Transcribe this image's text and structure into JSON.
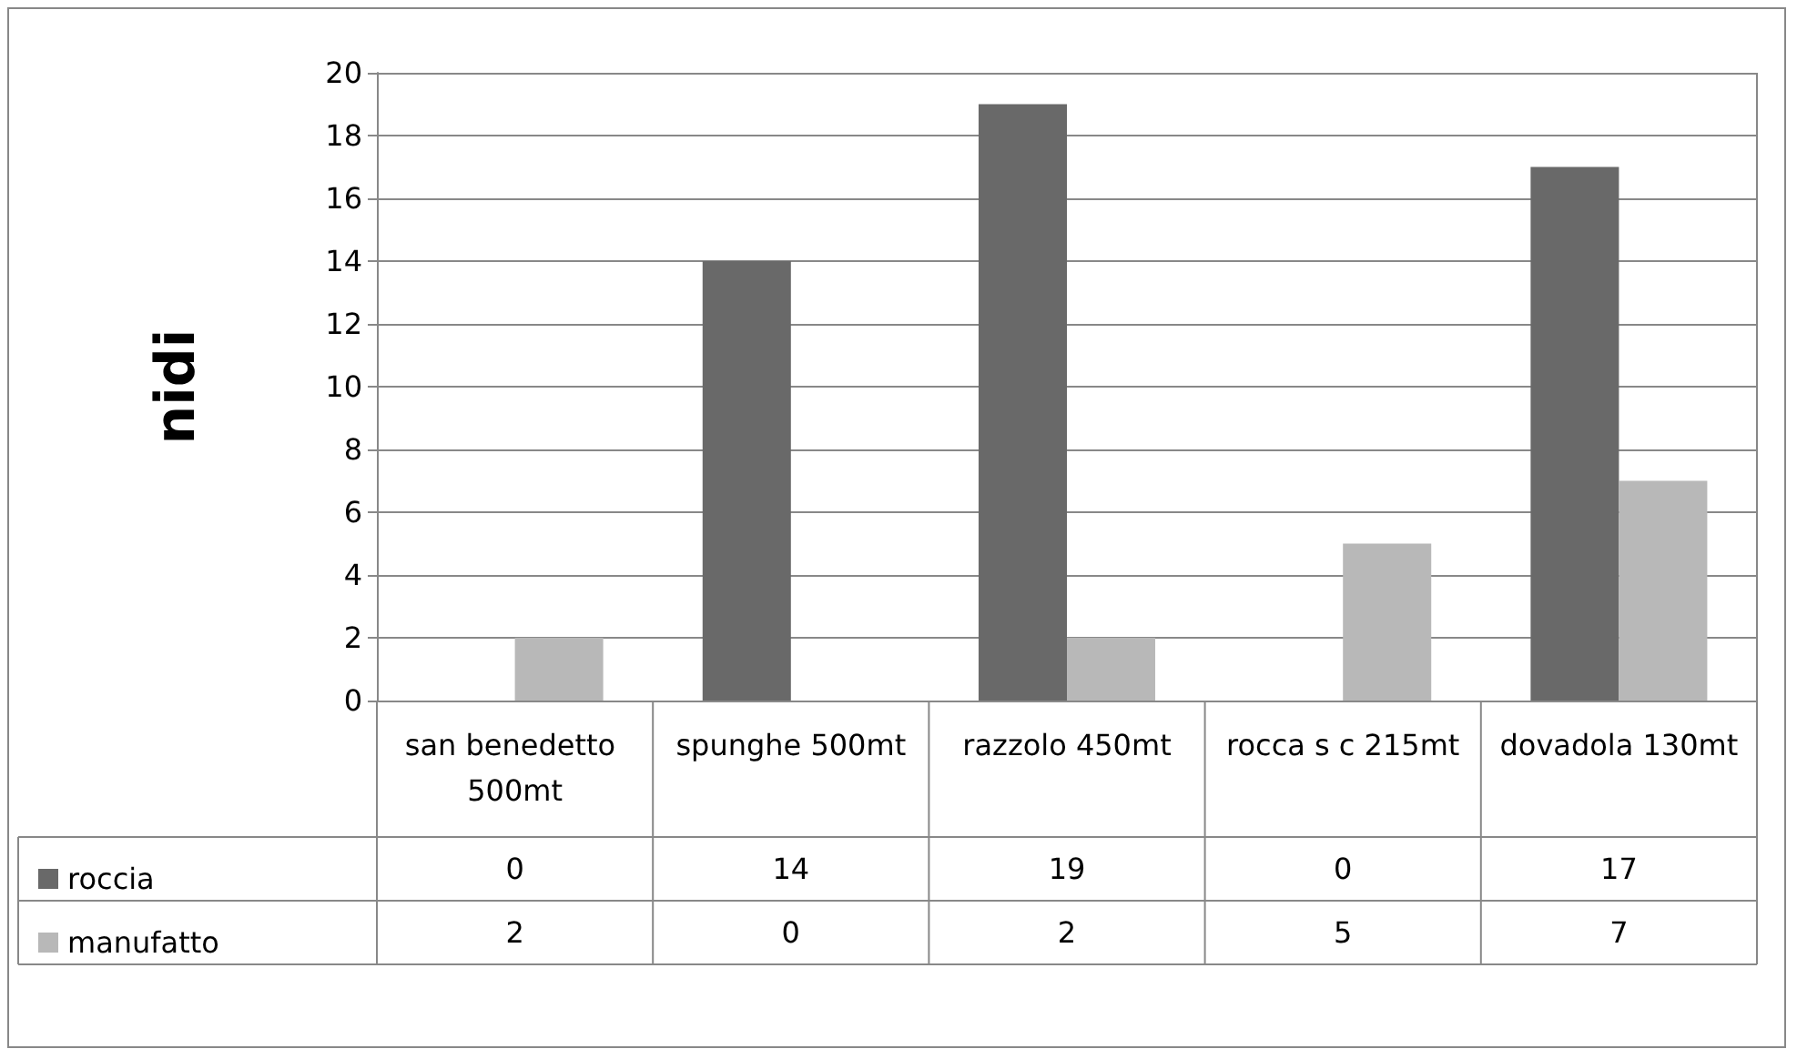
{
  "chart_data": {
    "type": "bar",
    "ylabel": "nidi",
    "categories": [
      "san benedetto 500mt",
      "spunghe 500mt",
      "razzolo 450mt",
      "rocca s c 215mt",
      "dovadola 130mt"
    ],
    "series": [
      {
        "name": "roccia",
        "color": "#696969",
        "values": [
          0,
          14,
          19,
          0,
          17
        ]
      },
      {
        "name": "manufatto",
        "color": "#b8b8b8",
        "values": [
          2,
          0,
          2,
          5,
          7
        ]
      }
    ],
    "ylim": [
      0,
      20
    ],
    "yticks": [
      0,
      2,
      4,
      6,
      8,
      10,
      12,
      14,
      16,
      18,
      20
    ],
    "grid": "y",
    "legend": "bottom",
    "data_labels": true
  }
}
